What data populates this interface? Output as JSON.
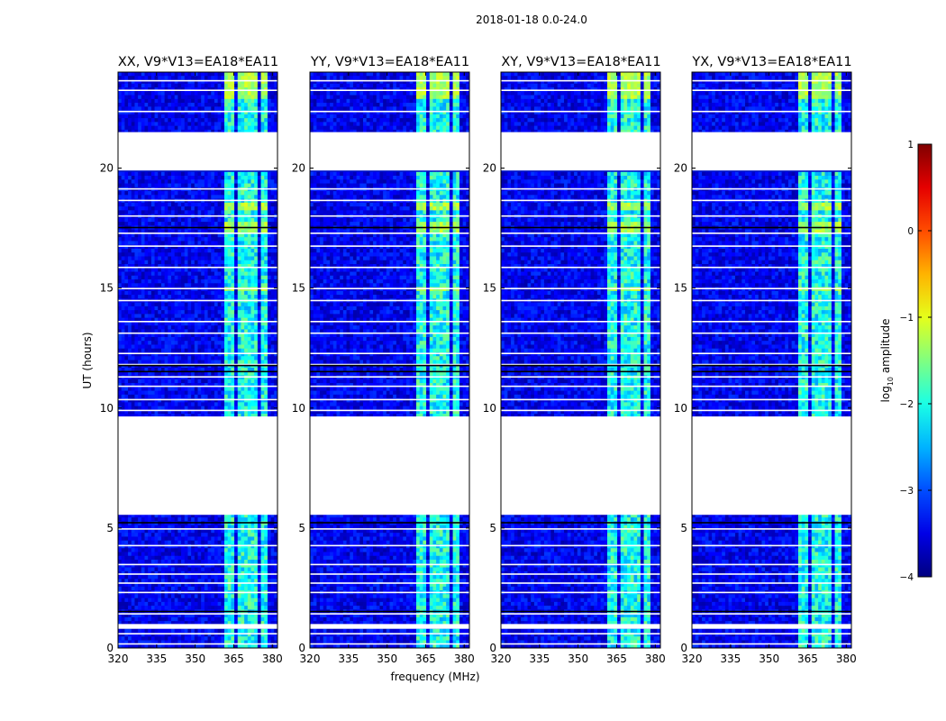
{
  "suptitle": "2018-01-18 0.0-24.0",
  "chart_data": {
    "type": "heatmap",
    "title": "2018-01-18 0.0-24.0",
    "xlabel": "frequency (MHz)",
    "ylabel": "UT (hours)",
    "xlim": [
      320,
      382
    ],
    "ylim": [
      0,
      24
    ],
    "xticks": [
      320,
      335,
      350,
      365,
      380
    ],
    "yticks": [
      0,
      5,
      10,
      15,
      20
    ],
    "colorbar": {
      "label_base": "log",
      "label_sub": "10",
      "label_rest": " amplitude",
      "range": [
        -4,
        1
      ],
      "ticks": [
        -4,
        -3,
        -2,
        -1,
        0,
        1
      ],
      "tick_labels": [
        "−4",
        "−3",
        "−2",
        "−1",
        "0",
        "1"
      ],
      "colormap": "jet"
    },
    "panels": [
      {
        "title": "XX, V9*V13=EA18*EA11",
        "bright_rows": [
          [
            14.8,
            15.1
          ],
          [
            18.2,
            18.5
          ],
          [
            17.3,
            17.7
          ],
          [
            22.9,
            24.0
          ]
        ]
      },
      {
        "title": "YY, V9*V13=EA18*EA11",
        "bright_rows": [
          [
            14.8,
            15.1
          ],
          [
            18.2,
            18.5
          ],
          [
            17.3,
            17.7
          ],
          [
            22.9,
            24.0
          ]
        ]
      },
      {
        "title": "XY, V9*V13=EA18*EA11",
        "bright_rows": [
          [
            14.8,
            15.1
          ],
          [
            18.2,
            18.5
          ],
          [
            17.3,
            17.7
          ],
          [
            22.9,
            24.0
          ]
        ]
      },
      {
        "title": "YX, V9*V13=EA18*EA11",
        "bright_rows": [
          [
            14.8,
            15.1
          ],
          [
            18.2,
            18.5
          ],
          [
            17.3,
            17.7
          ],
          [
            22.9,
            24.0
          ]
        ]
      }
    ],
    "data_gaps_hours": [
      [
        5.55,
        9.65
      ],
      [
        19.9,
        21.45
      ],
      [
        0.8,
        1.0
      ]
    ],
    "rfi_band_mhz": [
      361.5,
      378.5
    ],
    "rfi_channels_mhz": [
      [
        361.5,
        365.5
      ],
      [
        366.5,
        370.0
      ],
      [
        371.0,
        374.5
      ],
      [
        375.5,
        378.5
      ]
    ]
  }
}
